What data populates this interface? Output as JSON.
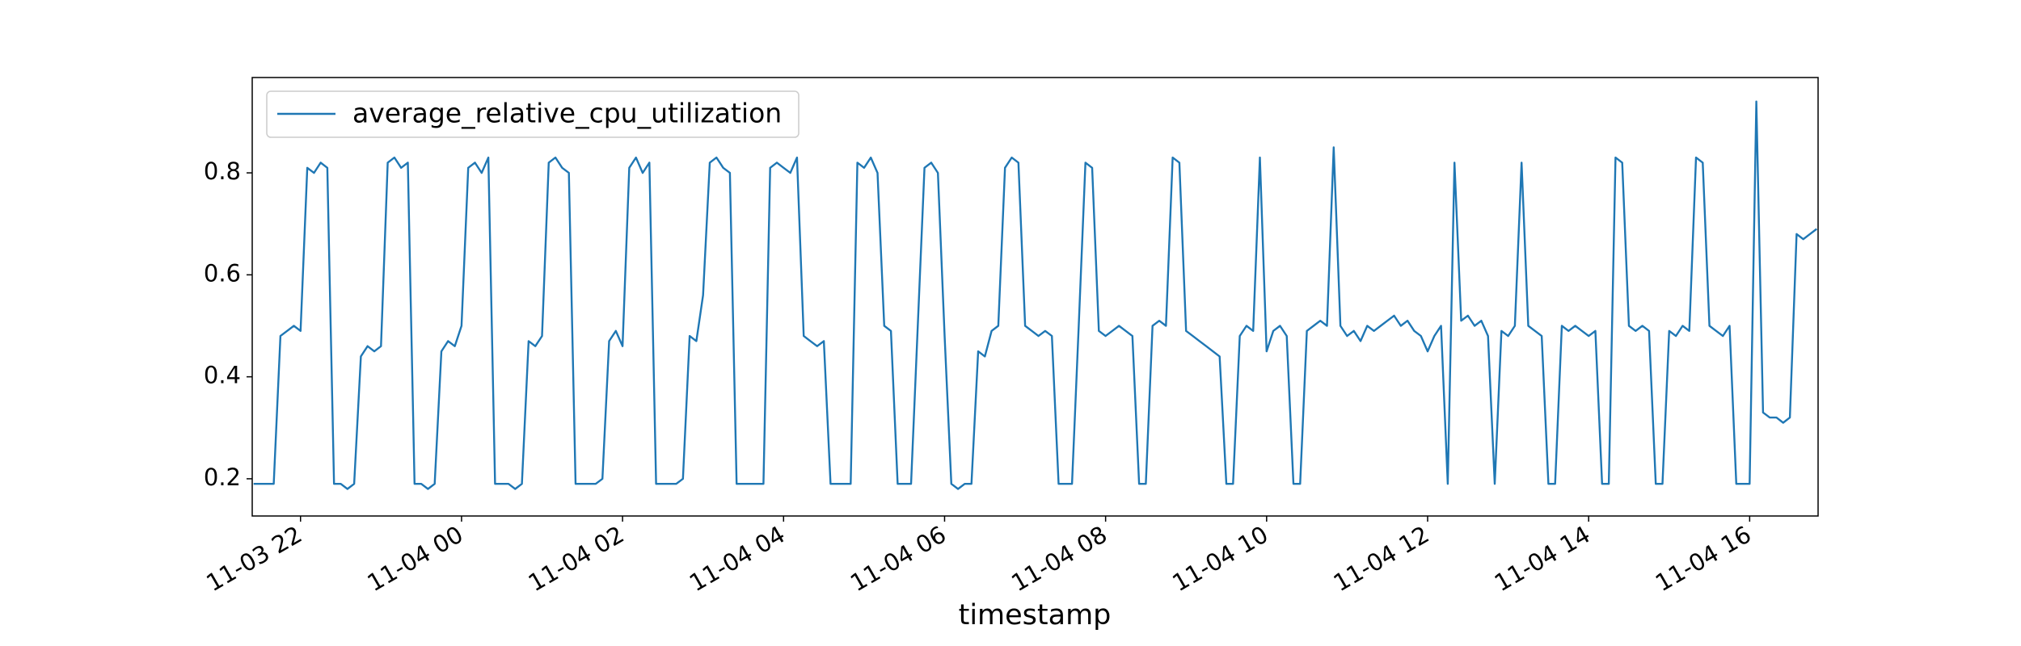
{
  "chart_data": {
    "type": "line",
    "xlabel": "timestamp",
    "xlim": [
      "11-03 21:24",
      "11-04 16:51"
    ],
    "ylim": [
      0.127,
      0.987
    ],
    "yticks": [
      0.2,
      0.4,
      0.6,
      0.8
    ],
    "xticks": [
      {
        "value": "11-03 22:00",
        "label": "11-03 22"
      },
      {
        "value": "11-04 00:00",
        "label": "11-04 00"
      },
      {
        "value": "11-04 02:00",
        "label": "11-04 02"
      },
      {
        "value": "11-04 04:00",
        "label": "11-04 04"
      },
      {
        "value": "11-04 06:00",
        "label": "11-04 06"
      },
      {
        "value": "11-04 08:00",
        "label": "11-04 08"
      },
      {
        "value": "11-04 10:00",
        "label": "11-04 10"
      },
      {
        "value": "11-04 12:00",
        "label": "11-04 12"
      },
      {
        "value": "11-04 14:00",
        "label": "11-04 14"
      },
      {
        "value": "11-04 16:00",
        "label": "11-04 16"
      }
    ],
    "legend": "upper left",
    "x": [
      "11-03 21:25",
      "11-03 21:30",
      "11-03 21:35",
      "11-03 21:40",
      "11-03 21:45",
      "11-03 21:50",
      "11-03 21:55",
      "11-03 22:00",
      "11-03 22:05",
      "11-03 22:10",
      "11-03 22:15",
      "11-03 22:20",
      "11-03 22:25",
      "11-03 22:30",
      "11-03 22:35",
      "11-03 22:40",
      "11-03 22:45",
      "11-03 22:50",
      "11-03 22:55",
      "11-03 23:00",
      "11-03 23:05",
      "11-03 23:10",
      "11-03 23:15",
      "11-03 23:20",
      "11-03 23:25",
      "11-03 23:30",
      "11-03 23:35",
      "11-03 23:40",
      "11-03 23:45",
      "11-03 23:50",
      "11-03 23:55",
      "11-04 00:00",
      "11-04 00:05",
      "11-04 00:10",
      "11-04 00:15",
      "11-04 00:20",
      "11-04 00:25",
      "11-04 00:30",
      "11-04 00:35",
      "11-04 00:40",
      "11-04 00:45",
      "11-04 00:50",
      "11-04 00:55",
      "11-04 01:00",
      "11-04 01:05",
      "11-04 01:10",
      "11-04 01:15",
      "11-04 01:20",
      "11-04 01:25",
      "11-04 01:30",
      "11-04 01:35",
      "11-04 01:40",
      "11-04 01:45",
      "11-04 01:50",
      "11-04 01:55",
      "11-04 02:00",
      "11-04 02:05",
      "11-04 02:10",
      "11-04 02:15",
      "11-04 02:20",
      "11-04 02:25",
      "11-04 02:30",
      "11-04 02:35",
      "11-04 02:40",
      "11-04 02:45",
      "11-04 02:50",
      "11-04 02:55",
      "11-04 03:00",
      "11-04 03:05",
      "11-04 03:10",
      "11-04 03:15",
      "11-04 03:20",
      "11-04 03:25",
      "11-04 03:30",
      "11-04 03:35",
      "11-04 03:40",
      "11-04 03:45",
      "11-04 03:50",
      "11-04 03:55",
      "11-04 04:00",
      "11-04 04:05",
      "11-04 04:10",
      "11-04 04:15",
      "11-04 04:20",
      "11-04 04:25",
      "11-04 04:30",
      "11-04 04:35",
      "11-04 04:40",
      "11-04 04:45",
      "11-04 04:50",
      "11-04 04:55",
      "11-04 05:00",
      "11-04 05:05",
      "11-04 05:10",
      "11-04 05:15",
      "11-04 05:20",
      "11-04 05:25",
      "11-04 05:30",
      "11-04 05:35",
      "11-04 05:40",
      "11-04 05:45",
      "11-04 05:50",
      "11-04 05:55",
      "11-04 06:00",
      "11-04 06:05",
      "11-04 06:10",
      "11-04 06:15",
      "11-04 06:20",
      "11-04 06:25",
      "11-04 06:30",
      "11-04 06:35",
      "11-04 06:40",
      "11-04 06:45",
      "11-04 06:50",
      "11-04 06:55",
      "11-04 07:00",
      "11-04 07:05",
      "11-04 07:10",
      "11-04 07:15",
      "11-04 07:20",
      "11-04 07:25",
      "11-04 07:30",
      "11-04 07:35",
      "11-04 07:40",
      "11-04 07:45",
      "11-04 07:50",
      "11-04 07:55",
      "11-04 08:00",
      "11-04 08:05",
      "11-04 08:10",
      "11-04 08:15",
      "11-04 08:20",
      "11-04 08:25",
      "11-04 08:30",
      "11-04 08:35",
      "11-04 08:40",
      "11-04 08:45",
      "11-04 08:50",
      "11-04 08:55",
      "11-04 09:00",
      "11-04 09:05",
      "11-04 09:10",
      "11-04 09:15",
      "11-04 09:20",
      "11-04 09:25",
      "11-04 09:30",
      "11-04 09:35",
      "11-04 09:40",
      "11-04 09:45",
      "11-04 09:50",
      "11-04 09:55",
      "11-04 10:00",
      "11-04 10:05",
      "11-04 10:10",
      "11-04 10:15",
      "11-04 10:20",
      "11-04 10:25",
      "11-04 10:30",
      "11-04 10:35",
      "11-04 10:40",
      "11-04 10:45",
      "11-04 10:50",
      "11-04 10:55",
      "11-04 11:00",
      "11-04 11:05",
      "11-04 11:10",
      "11-04 11:15",
      "11-04 11:20",
      "11-04 11:25",
      "11-04 11:30",
      "11-04 11:35",
      "11-04 11:40",
      "11-04 11:45",
      "11-04 11:50",
      "11-04 11:55",
      "11-04 12:00",
      "11-04 12:05",
      "11-04 12:10",
      "11-04 12:15",
      "11-04 12:20",
      "11-04 12:25",
      "11-04 12:30",
      "11-04 12:35",
      "11-04 12:40",
      "11-04 12:45",
      "11-04 12:50",
      "11-04 12:55",
      "11-04 13:00",
      "11-04 13:05",
      "11-04 13:10",
      "11-04 13:15",
      "11-04 13:20",
      "11-04 13:25",
      "11-04 13:30",
      "11-04 13:35",
      "11-04 13:40",
      "11-04 13:45",
      "11-04 13:50",
      "11-04 13:55",
      "11-04 14:00",
      "11-04 14:05",
      "11-04 14:10",
      "11-04 14:15",
      "11-04 14:20",
      "11-04 14:25",
      "11-04 14:30",
      "11-04 14:35",
      "11-04 14:40",
      "11-04 14:45",
      "11-04 14:50",
      "11-04 14:55",
      "11-04 15:00",
      "11-04 15:05",
      "11-04 15:10",
      "11-04 15:15",
      "11-04 15:20",
      "11-04 15:25",
      "11-04 15:30",
      "11-04 15:35",
      "11-04 15:40",
      "11-04 15:45",
      "11-04 15:50",
      "11-04 15:55",
      "11-04 16:00",
      "11-04 16:05",
      "11-04 16:10",
      "11-04 16:15",
      "11-04 16:20",
      "11-04 16:25",
      "11-04 16:30",
      "11-04 16:35",
      "11-04 16:40",
      "11-04 16:45",
      "11-04 16:50"
    ],
    "series": [
      {
        "name": "average_relative_cpu_utilization",
        "color": "#1f77b4",
        "values": [
          0.19,
          0.19,
          0.19,
          0.19,
          0.48,
          0.49,
          0.5,
          0.49,
          0.81,
          0.8,
          0.82,
          0.81,
          0.19,
          0.19,
          0.18,
          0.19,
          0.44,
          0.46,
          0.45,
          0.46,
          0.82,
          0.83,
          0.81,
          0.82,
          0.19,
          0.19,
          0.18,
          0.19,
          0.45,
          0.47,
          0.46,
          0.5,
          0.81,
          0.82,
          0.8,
          0.83,
          0.19,
          0.19,
          0.19,
          0.18,
          0.19,
          0.47,
          0.46,
          0.48,
          0.82,
          0.83,
          0.81,
          0.8,
          0.19,
          0.19,
          0.19,
          0.19,
          0.2,
          0.47,
          0.49,
          0.46,
          0.81,
          0.83,
          0.8,
          0.82,
          0.19,
          0.19,
          0.19,
          0.19,
          0.2,
          0.48,
          0.47,
          0.56,
          0.82,
          0.83,
          0.81,
          0.8,
          0.19,
          0.19,
          0.19,
          0.19,
          0.19,
          0.81,
          0.82,
          0.81,
          0.8,
          0.83,
          0.48,
          0.47,
          0.46,
          0.47,
          0.19,
          0.19,
          0.19,
          0.19,
          0.82,
          0.81,
          0.83,
          0.8,
          0.5,
          0.49,
          0.19,
          0.19,
          0.19,
          0.5,
          0.81,
          0.82,
          0.8,
          0.48,
          0.19,
          0.18,
          0.19,
          0.19,
          0.45,
          0.44,
          0.49,
          0.5,
          0.81,
          0.83,
          0.82,
          0.5,
          0.49,
          0.48,
          0.49,
          0.48,
          0.19,
          0.19,
          0.19,
          0.5,
          0.82,
          0.81,
          0.49,
          0.48,
          0.49,
          0.5,
          0.49,
          0.48,
          0.19,
          0.19,
          0.5,
          0.51,
          0.5,
          0.83,
          0.82,
          0.49,
          0.48,
          0.47,
          0.46,
          0.45,
          0.44,
          0.19,
          0.19,
          0.48,
          0.5,
          0.49,
          0.83,
          0.45,
          0.49,
          0.5,
          0.48,
          0.19,
          0.19,
          0.49,
          0.5,
          0.51,
          0.5,
          0.85,
          0.5,
          0.48,
          0.49,
          0.47,
          0.5,
          0.49,
          0.5,
          0.51,
          0.52,
          0.5,
          0.51,
          0.49,
          0.48,
          0.45,
          0.48,
          0.5,
          0.19,
          0.82,
          0.51,
          0.52,
          0.5,
          0.51,
          0.48,
          0.19,
          0.49,
          0.48,
          0.5,
          0.82,
          0.5,
          0.49,
          0.48,
          0.19,
          0.19,
          0.5,
          0.49,
          0.5,
          0.49,
          0.48,
          0.49,
          0.19,
          0.19,
          0.83,
          0.82,
          0.5,
          0.49,
          0.5,
          0.49,
          0.19,
          0.19,
          0.49,
          0.48,
          0.5,
          0.49,
          0.83,
          0.82,
          0.5,
          0.49,
          0.48,
          0.5,
          0.19,
          0.19,
          0.19,
          0.94,
          0.33,
          0.32,
          0.32,
          0.31,
          0.32,
          0.68,
          0.67,
          0.68,
          0.69
        ]
      }
    ]
  }
}
